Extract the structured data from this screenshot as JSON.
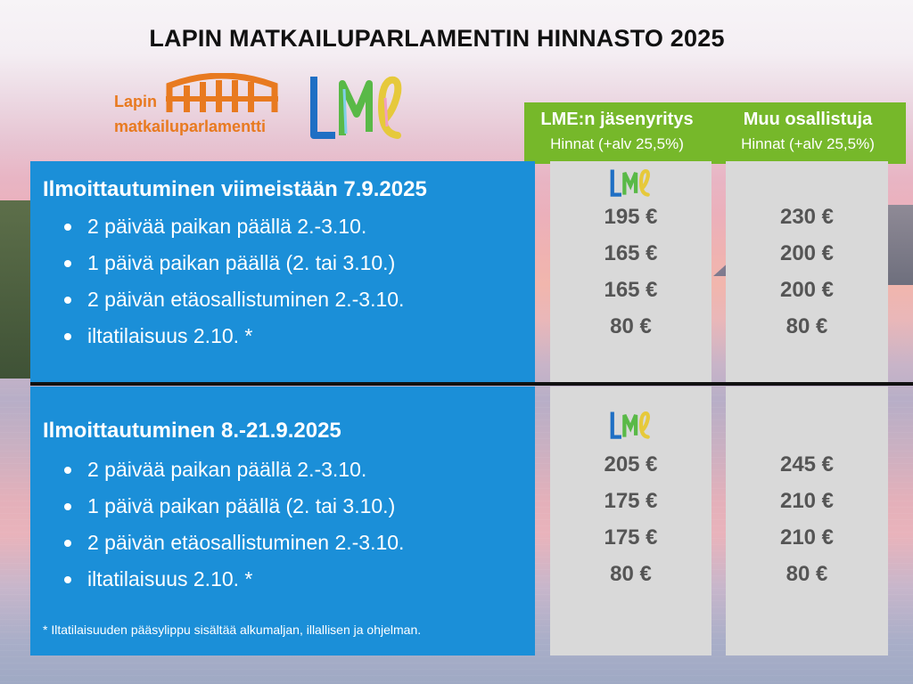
{
  "title": "LAPIN MATKAILUPARLAMENTIN HINNASTO 2025",
  "logos": {
    "lmp_line1": "Lapin",
    "lmp_line2": "matkailuparlamentti",
    "lmp_icon": "bridge-icon",
    "lme": "LME",
    "colors": {
      "lmp": "#e87a20",
      "lme_blue": "#1f6fc4",
      "lme_green": "#59b947",
      "lme_yellow": "#e6c93b"
    }
  },
  "columns": [
    {
      "title": "LME:n jäsenyritys",
      "subtitle": "Hinnat (+alv 25,5%)"
    },
    {
      "title": "Muu osallistuja",
      "subtitle": "Hinnat (+alv 25,5%)"
    }
  ],
  "sections": [
    {
      "title": "Ilmoittautuminen viimeistään 7.9.2025",
      "items": [
        "2 päivää paikan päällä 2.-3.10.",
        "1 päivä paikan päällä (2. tai 3.10.)",
        "2 päivän etäosallistuminen 2.-3.10.",
        "iltatilaisuus 2.10. *"
      ],
      "prices_member": [
        "195 €",
        "165 €",
        "165 €",
        "80 €"
      ],
      "prices_other": [
        "230 €",
        "200 €",
        "200 €",
        "80 €"
      ]
    },
    {
      "title": "Ilmoittautuminen 8.-21.9.2025",
      "items": [
        "2 päivää paikan päällä 2.-3.10.",
        "1 päivä paikan päällä (2. tai 3.10.)",
        "2 päivän etäosallistuminen 2.-3.10.",
        "iltatilaisuus 2.10. *"
      ],
      "prices_member": [
        "205 €",
        "175 €",
        "175 €",
        "80 €"
      ],
      "prices_other": [
        "245 €",
        "210 €",
        "210 €",
        "80 €"
      ]
    }
  ],
  "footnote": "* Iltatilaisuuden pääsylippu sisältää alkumaljan, illallisen ja ohjelman.",
  "colors": {
    "panel_blue": "#1b8fd8",
    "header_green": "#76b82a",
    "price_gray": "#d9d9d9"
  }
}
